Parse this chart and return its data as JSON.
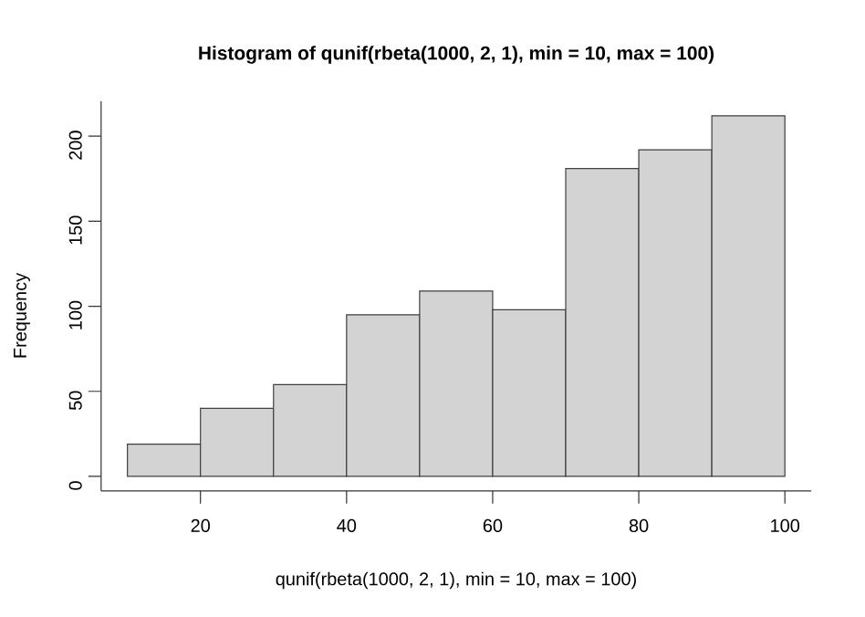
{
  "chart_data": {
    "type": "histogram",
    "title": "Histogram of qunif(rbeta(1000, 2, 1), min = 10, max = 100)",
    "xlabel": "qunif(rbeta(1000, 2, 1), min = 10, max = 100)",
    "ylabel": "Frequency",
    "bins": [
      10,
      20,
      30,
      40,
      50,
      60,
      70,
      80,
      90,
      100
    ],
    "values": [
      19,
      40,
      54,
      95,
      109,
      98,
      181,
      192,
      212
    ],
    "color": "#d3d3d3",
    "xlim": [
      6.4,
      103.6
    ],
    "ylim": [
      -8.5,
      220.5
    ],
    "xticks": [
      20,
      40,
      60,
      80,
      100
    ],
    "yticks": [
      0,
      50,
      100,
      150,
      200
    ]
  }
}
